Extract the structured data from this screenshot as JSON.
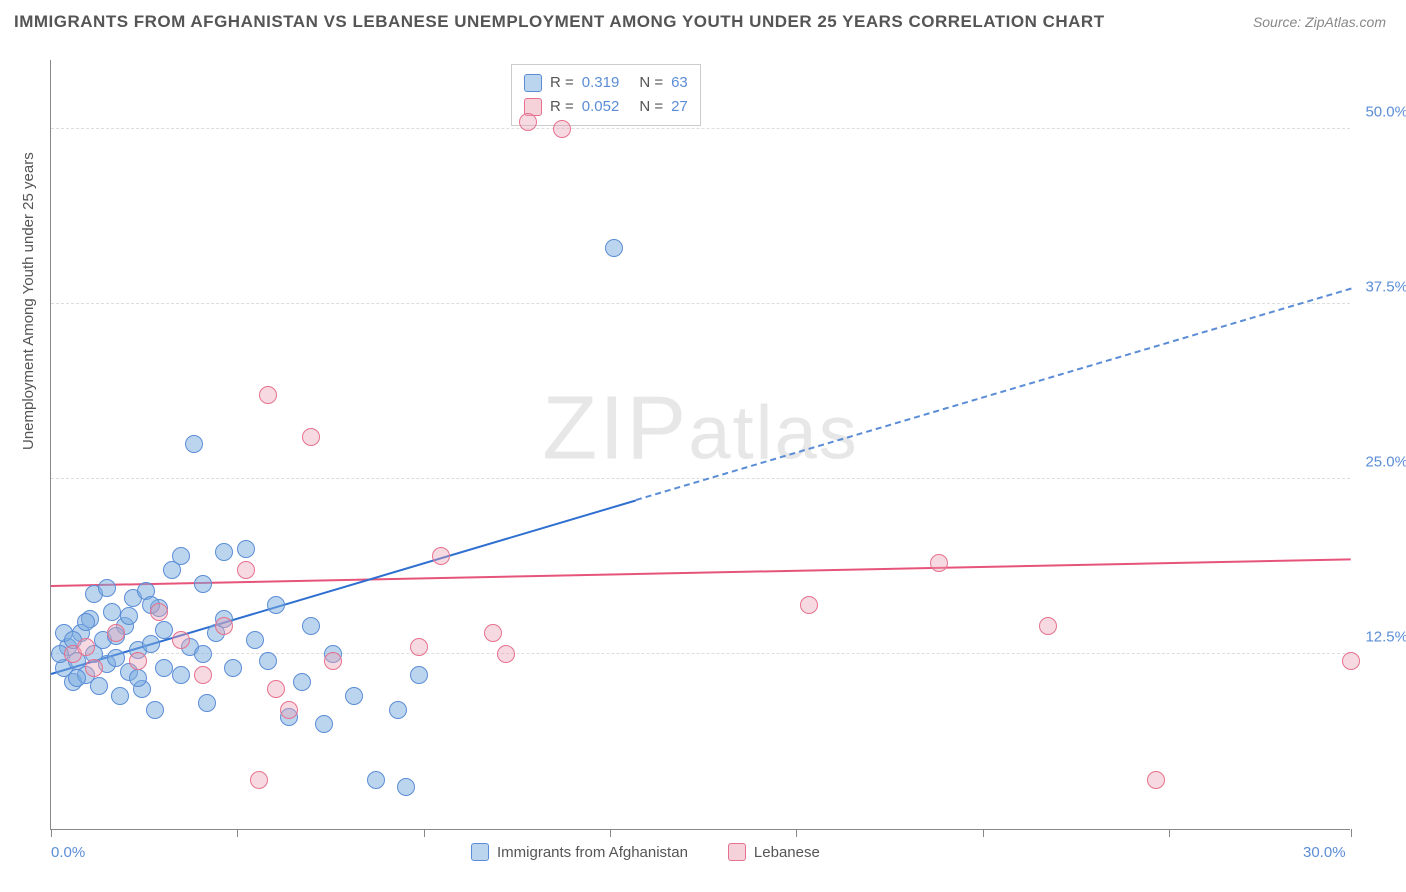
{
  "title": "IMMIGRANTS FROM AFGHANISTAN VS LEBANESE UNEMPLOYMENT AMONG YOUTH UNDER 25 YEARS CORRELATION CHART",
  "source": "Source: ZipAtlas.com",
  "y_axis_label": "Unemployment Among Youth under 25 years",
  "watermark": "ZIPatlas",
  "chart": {
    "type": "scatter",
    "xlim": [
      0,
      30
    ],
    "ylim": [
      0,
      55
    ],
    "x_tick_positions": [
      0,
      4.3,
      8.6,
      12.9,
      17.2,
      21.5,
      25.8,
      30
    ],
    "x_tick_labels_shown": {
      "0": "0.0%",
      "30": "30.0%"
    },
    "y_gridlines": [
      12.5,
      25,
      37.5,
      50
    ],
    "y_tick_labels": {
      "12.5": "12.5%",
      "25": "25.0%",
      "37.5": "37.5%",
      "50": "50.0%"
    },
    "background_color": "#ffffff",
    "grid_color": "#dddddd",
    "axis_color": "#888888",
    "label_color_axis": "#5b8dd6",
    "point_radius": 9,
    "series": [
      {
        "name": "Immigrants from Afghanistan",
        "color_fill": "rgba(122,172,224,0.5)",
        "color_stroke": "#5b8dd6",
        "trend_color": "#2f6fd0",
        "R": "0.319",
        "N": "63",
        "trend": {
          "x1": 0,
          "y1": 11,
          "x2_solid": 13.5,
          "y2_solid": 23.4,
          "x2_dash": 30,
          "y2_dash": 38.5
        },
        "points": [
          [
            0.3,
            11.5
          ],
          [
            0.4,
            13.0
          ],
          [
            0.5,
            10.5
          ],
          [
            0.6,
            12.0
          ],
          [
            0.7,
            14.0
          ],
          [
            0.8,
            11.0
          ],
          [
            0.9,
            15.0
          ],
          [
            1.0,
            12.5
          ],
          [
            1.1,
            10.2
          ],
          [
            1.2,
            13.5
          ],
          [
            1.3,
            11.8
          ],
          [
            1.4,
            15.5
          ],
          [
            1.5,
            12.2
          ],
          [
            1.6,
            9.5
          ],
          [
            1.7,
            14.5
          ],
          [
            1.8,
            11.2
          ],
          [
            1.9,
            16.5
          ],
          [
            2.0,
            12.8
          ],
          [
            2.1,
            10.0
          ],
          [
            2.2,
            17.0
          ],
          [
            2.3,
            13.2
          ],
          [
            2.4,
            8.5
          ],
          [
            2.5,
            15.8
          ],
          [
            2.6,
            11.5
          ],
          [
            2.8,
            18.5
          ],
          [
            3.0,
            19.5
          ],
          [
            3.2,
            13.0
          ],
          [
            3.3,
            27.5
          ],
          [
            3.5,
            17.5
          ],
          [
            3.6,
            9.0
          ],
          [
            3.8,
            14.0
          ],
          [
            4.0,
            19.8
          ],
          [
            4.2,
            11.5
          ],
          [
            4.5,
            20.0
          ],
          [
            4.7,
            13.5
          ],
          [
            5.0,
            12.0
          ],
          [
            5.2,
            16.0
          ],
          [
            5.5,
            8.0
          ],
          [
            5.8,
            10.5
          ],
          [
            6.0,
            14.5
          ],
          [
            6.3,
            7.5
          ],
          [
            6.5,
            12.5
          ],
          [
            7.0,
            9.5
          ],
          [
            7.5,
            3.5
          ],
          [
            8.0,
            8.5
          ],
          [
            8.2,
            3.0
          ],
          [
            8.5,
            11.0
          ],
          [
            13.0,
            41.5
          ],
          [
            0.2,
            12.5
          ],
          [
            0.3,
            14.0
          ],
          [
            0.5,
            13.5
          ],
          [
            0.6,
            10.8
          ],
          [
            0.8,
            14.8
          ],
          [
            1.0,
            16.8
          ],
          [
            1.3,
            17.2
          ],
          [
            1.5,
            13.8
          ],
          [
            1.8,
            15.2
          ],
          [
            2.0,
            10.8
          ],
          [
            2.3,
            16.0
          ],
          [
            2.6,
            14.2
          ],
          [
            3.0,
            11.0
          ],
          [
            3.5,
            12.5
          ],
          [
            4.0,
            15.0
          ]
        ]
      },
      {
        "name": "Lebanese",
        "color_fill": "rgba(236,163,181,0.4)",
        "color_stroke": "#e6718e",
        "trend_color": "#e6547a",
        "R": "0.052",
        "N": "27",
        "trend": {
          "x1": 0,
          "y1": 17.3,
          "x2_solid": 30,
          "y2_solid": 19.2,
          "x2_dash": 30,
          "y2_dash": 19.2
        },
        "points": [
          [
            0.5,
            12.5
          ],
          [
            0.8,
            13.0
          ],
          [
            1.0,
            11.5
          ],
          [
            1.5,
            14.0
          ],
          [
            2.0,
            12.0
          ],
          [
            2.5,
            15.5
          ],
          [
            3.0,
            13.5
          ],
          [
            3.5,
            11.0
          ],
          [
            4.0,
            14.5
          ],
          [
            4.5,
            18.5
          ],
          [
            5.0,
            31.0
          ],
          [
            5.2,
            10.0
          ],
          [
            5.5,
            8.5
          ],
          [
            6.0,
            28.0
          ],
          [
            6.5,
            12.0
          ],
          [
            8.5,
            13.0
          ],
          [
            9.0,
            19.5
          ],
          [
            10.2,
            14.0
          ],
          [
            10.5,
            12.5
          ],
          [
            11.0,
            50.5
          ],
          [
            11.8,
            50.0
          ],
          [
            17.5,
            16.0
          ],
          [
            20.5,
            19.0
          ],
          [
            23.0,
            14.5
          ],
          [
            25.5,
            3.5
          ],
          [
            30.0,
            12.0
          ],
          [
            4.8,
            3.5
          ]
        ]
      }
    ]
  },
  "legend_top": {
    "rows": [
      {
        "swatch": "a",
        "r_label": "R =",
        "r_val": "0.319",
        "n_label": "N =",
        "n_val": "63"
      },
      {
        "swatch": "b",
        "r_label": "R =",
        "r_val": "0.052",
        "n_label": "N =",
        "n_val": "27"
      }
    ]
  },
  "legend_bottom": [
    {
      "swatch": "a",
      "label": "Immigrants from Afghanistan"
    },
    {
      "swatch": "b",
      "label": "Lebanese"
    }
  ]
}
